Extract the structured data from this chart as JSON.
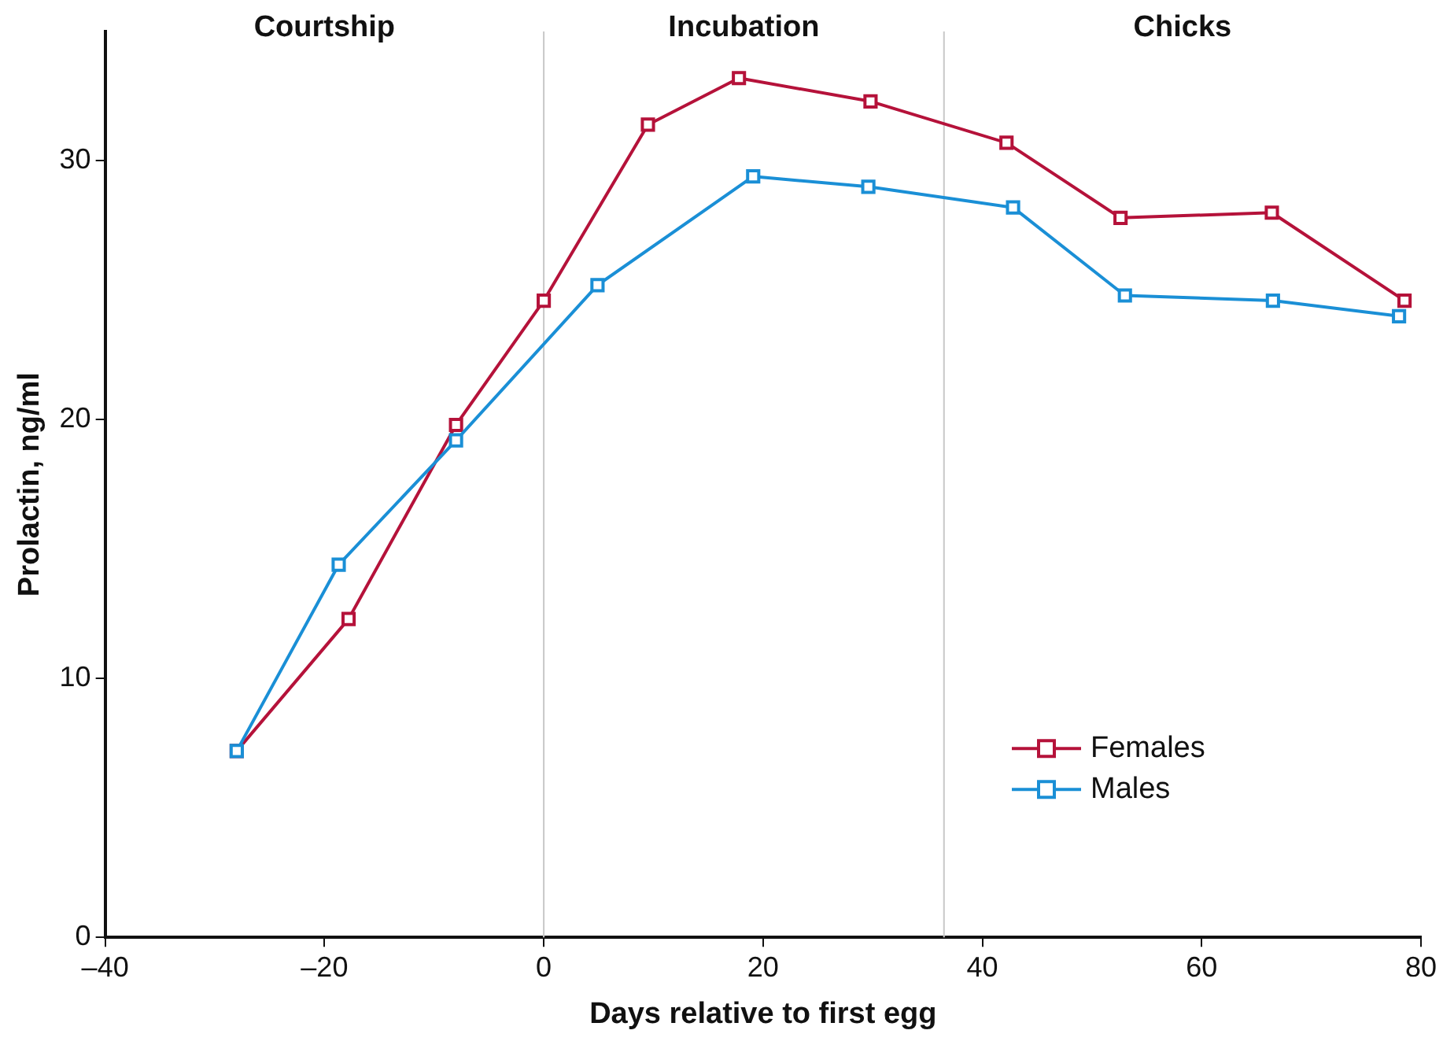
{
  "chart_data": {
    "type": "line",
    "xlabel": "Days relative to first egg",
    "ylabel": "Prolactin, ng/ml",
    "xlim": [
      -40,
      80
    ],
    "xticks": [
      {
        "value": -40,
        "label": "–40"
      },
      {
        "value": -20,
        "label": "–20"
      },
      0,
      20,
      40,
      60,
      80
    ],
    "ylim": [
      0,
      35
    ],
    "yticks": [
      0,
      10,
      20,
      30
    ],
    "series": [
      {
        "name": "Females",
        "color": "#b5123a",
        "x": [
          -28,
          -17.8,
          -8,
          0,
          9.5,
          17.8,
          29.8,
          42.2,
          52.6,
          66.4,
          78.5
        ],
        "values": [
          7.2,
          12.3,
          19.8,
          24.6,
          31.4,
          33.2,
          32.3,
          30.7,
          27.8,
          28.0,
          24.6
        ]
      },
      {
        "name": "Males",
        "color": "#1a8fd6",
        "x": [
          -28,
          -18.7,
          -8,
          4.9,
          19.1,
          29.6,
          42.8,
          53,
          66.5,
          78
        ],
        "values": [
          7.2,
          14.4,
          19.2,
          25.2,
          29.4,
          29.0,
          28.2,
          24.8,
          24.6,
          24.0
        ]
      }
    ],
    "ref_lines": [
      {
        "axis": "x",
        "value": 0,
        "color": "#c8c8c8"
      },
      {
        "axis": "x",
        "value": 36.5,
        "color": "#c8c8c8"
      }
    ],
    "annotations": [
      "Courtship",
      "Incubation",
      "Chicks"
    ],
    "marker": "square",
    "line_style": "solid",
    "grid": false,
    "legend": "bottom right"
  }
}
